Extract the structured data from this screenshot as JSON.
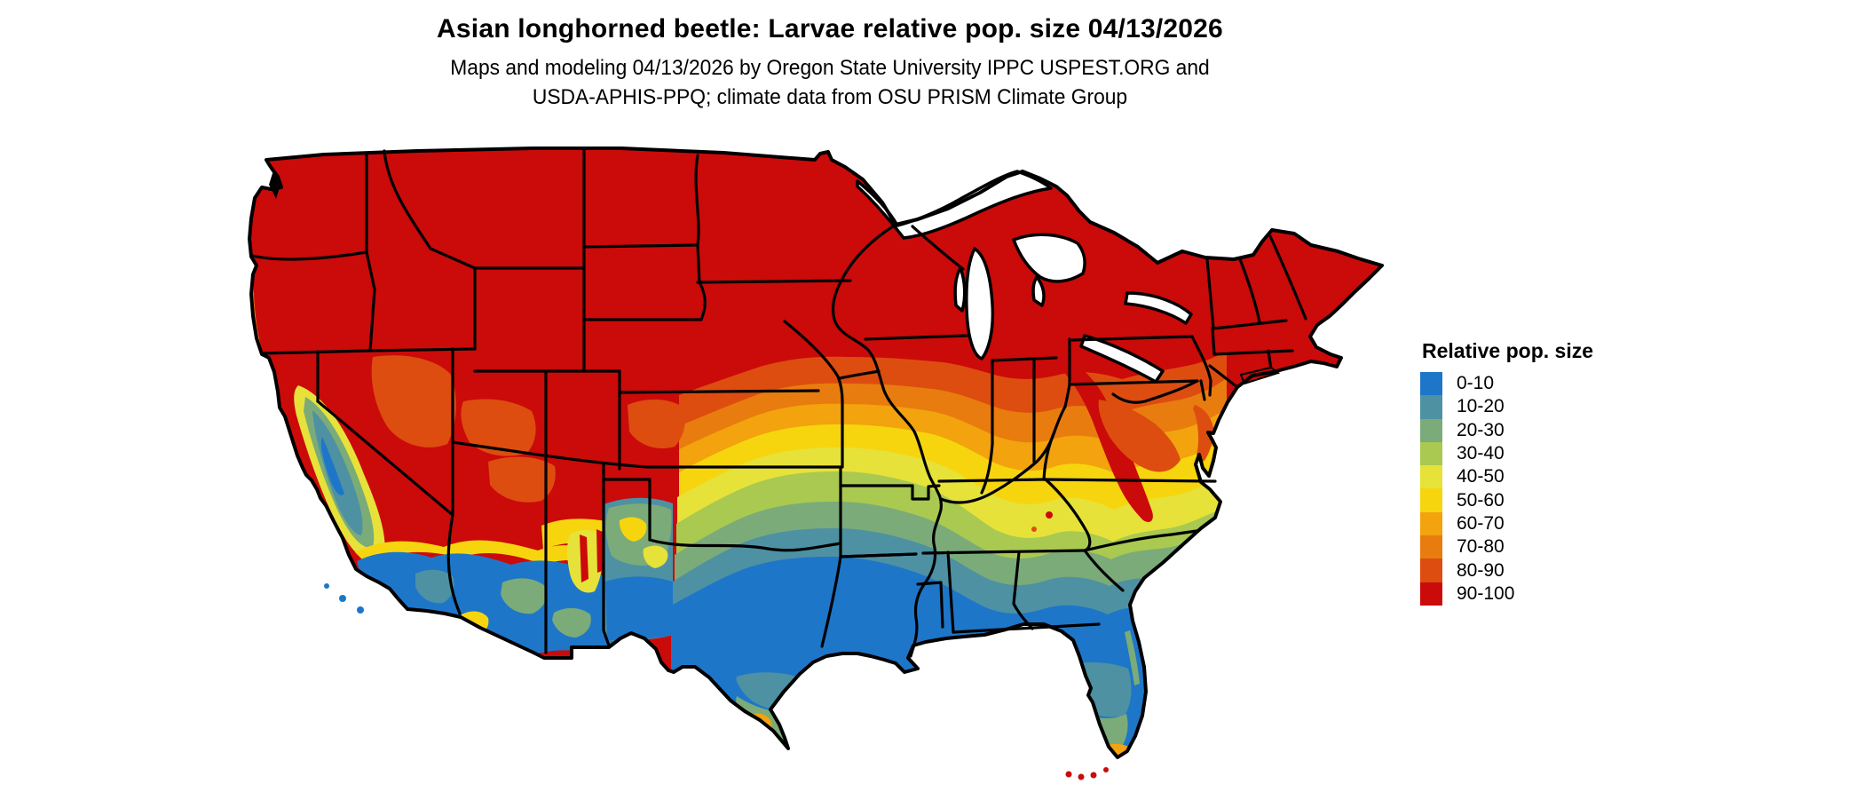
{
  "figure": {
    "title": "Asian longhorned beetle: Larvae relative pop. size 04/13/2026",
    "subtitle_line1": "Maps and modeling 04/13/2026 by Oregon State University IPPC USPEST.ORG and",
    "subtitle_line2": "USDA-APHIS-PPQ; climate data from OSU PRISM Climate Group"
  },
  "legend": {
    "title": "Relative pop. size",
    "items": [
      {
        "label": "0-10",
        "color": "#1e76c8"
      },
      {
        "label": "10-20",
        "color": "#4d91a3"
      },
      {
        "label": "20-30",
        "color": "#7bab79"
      },
      {
        "label": "30-40",
        "color": "#a9c950"
      },
      {
        "label": "40-50",
        "color": "#e6e23a"
      },
      {
        "label": "50-60",
        "color": "#f7d50e"
      },
      {
        "label": "60-70",
        "color": "#f2a30d"
      },
      {
        "label": "70-80",
        "color": "#e97c0e"
      },
      {
        "label": "80-90",
        "color": "#dd4d10"
      },
      {
        "label": "90-100",
        "color": "#cb0a0a"
      }
    ]
  },
  "map": {
    "region": "Contiguous United States",
    "type": "choropleth raster with state borders",
    "border_color": "#000000",
    "water_color": "#ffffff",
    "visible_pattern": {
      "north": "90-100 across the entire northern tier, Rockies, Great Lakes states and Northeast",
      "mid": "70-90 band through Kansas, Missouri, Ohio Valley, Pennsylvania, Virginia and the Appalachians",
      "central_south": "40-60 yellow band through Oklahoma, Arkansas, Kentucky, Tennessee, North Carolina",
      "south": "0-30 blue/teal/green across Texas, Gulf Coast, Deep South and north Florida",
      "exceptions": "California Central Valley and southern California/Arizona low (blue/teal); south Florida and lower Rio Grande valley rise to 30-70 with 90-100 at the Florida Keys"
    }
  }
}
